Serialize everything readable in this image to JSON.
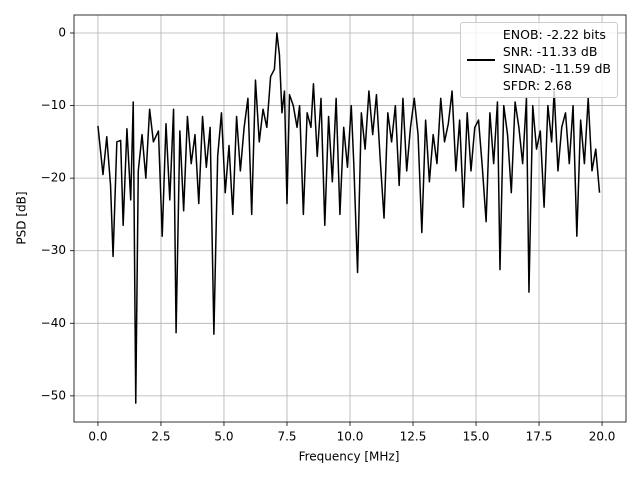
{
  "chart_data": {
    "type": "line",
    "xlabel": "Frequency [MHz]",
    "ylabel": "PSD [dB]",
    "x": [
      0.0,
      0.2,
      0.35,
      0.5,
      0.6,
      0.75,
      0.9,
      1.0,
      1.15,
      1.3,
      1.4,
      1.5,
      1.6,
      1.75,
      1.9,
      2.05,
      2.2,
      2.4,
      2.55,
      2.7,
      2.85,
      3.0,
      3.1,
      3.25,
      3.4,
      3.55,
      3.7,
      3.85,
      4.0,
      4.15,
      4.3,
      4.45,
      4.6,
      4.75,
      4.9,
      5.05,
      5.2,
      5.35,
      5.5,
      5.65,
      5.8,
      5.95,
      6.1,
      6.25,
      6.4,
      6.55,
      6.7,
      6.85,
      7.0,
      7.1,
      7.2,
      7.3,
      7.4,
      7.5,
      7.6,
      7.75,
      7.9,
      8.0,
      8.15,
      8.3,
      8.45,
      8.55,
      8.7,
      8.85,
      9.0,
      9.15,
      9.3,
      9.45,
      9.6,
      9.75,
      9.9,
      10.05,
      10.15,
      10.3,
      10.45,
      10.6,
      10.75,
      10.9,
      11.05,
      11.2,
      11.35,
      11.5,
      11.65,
      11.8,
      11.95,
      12.1,
      12.25,
      12.4,
      12.55,
      12.7,
      12.85,
      13.0,
      13.15,
      13.3,
      13.45,
      13.6,
      13.75,
      13.9,
      14.05,
      14.2,
      14.35,
      14.5,
      14.65,
      14.8,
      14.95,
      15.1,
      15.25,
      15.4,
      15.55,
      15.7,
      15.85,
      15.95,
      16.1,
      16.25,
      16.4,
      16.55,
      16.7,
      16.85,
      17.0,
      17.1,
      17.25,
      17.4,
      17.55,
      17.7,
      17.85,
      18.0,
      18.1,
      18.25,
      18.4,
      18.55,
      18.7,
      18.85,
      19.0,
      19.15,
      19.3,
      19.45,
      19.6,
      19.75,
      19.9
    ],
    "series": [
      {
        "name": "ENOB: -2.22 bits\nSNR: -11.33 dB\nSINAD: -11.59 dB\nSFDR: 2.68",
        "color": "#000000",
        "values": [
          -12.8,
          -19.5,
          -14.3,
          -21,
          -30.8,
          -15,
          -14.8,
          -26.5,
          -13.2,
          -23,
          -9.5,
          -51,
          -19,
          -14,
          -20,
          -10.5,
          -15,
          -13.5,
          -28,
          -12.5,
          -23,
          -10.5,
          -41.3,
          -13.5,
          -24.5,
          -11.5,
          -18,
          -14,
          -23.5,
          -11.5,
          -18.5,
          -13,
          -41.5,
          -17,
          -11,
          -22,
          -15.5,
          -25,
          -11.5,
          -19,
          -13,
          -9,
          -25,
          -6.5,
          -15,
          -10.5,
          -13,
          -6,
          -5,
          0,
          -3,
          -11,
          -8,
          -23.5,
          -8.5,
          -10,
          -13,
          -10,
          -25,
          -11,
          -13,
          -7,
          -17,
          -9,
          -26.5,
          -11.5,
          -20.5,
          -9,
          -25,
          -13,
          -18.5,
          -10,
          -18,
          -33,
          -11,
          -16,
          -8,
          -14,
          -8.5,
          -17.5,
          -25.5,
          -11,
          -15,
          -10,
          -21,
          -9,
          -19,
          -13,
          -9,
          -14,
          -27.5,
          -12,
          -20.5,
          -14,
          -18,
          -9,
          -15,
          -12.5,
          -8,
          -19,
          -12,
          -24,
          -11,
          -19,
          -13,
          -12,
          -18.5,
          -26,
          -11,
          -18,
          -9.5,
          -32.6,
          -10,
          -14,
          -22,
          -9.5,
          -13,
          -18,
          -9,
          -35.7,
          -10,
          -16,
          -13.5,
          -24,
          -10,
          -15,
          -8,
          -19,
          -13,
          -11,
          -18,
          -10,
          -28,
          -12,
          -18,
          -9,
          -19,
          -16,
          -22
        ]
      }
    ],
    "xlim": [
      -0.95,
      20.95
    ],
    "ylim": [
      -53.6,
      2.48
    ],
    "xticks": [
      {
        "value": 0,
        "label": "0.0"
      },
      2.5,
      {
        "value": 5,
        "label": "5.0"
      },
      7.5,
      {
        "value": 10,
        "label": "10.0"
      },
      12.5,
      {
        "value": 15,
        "label": "15.0"
      },
      17.5,
      {
        "value": 20,
        "label": "20.0"
      }
    ],
    "yticks": [
      {
        "value": -50,
        "label": "−50"
      },
      {
        "value": -40,
        "label": "−40"
      },
      {
        "value": -30,
        "label": "−30"
      },
      {
        "value": -20,
        "label": "−20"
      },
      {
        "value": -10,
        "label": "−10"
      },
      0
    ],
    "grid": true,
    "legend": "upper right"
  }
}
